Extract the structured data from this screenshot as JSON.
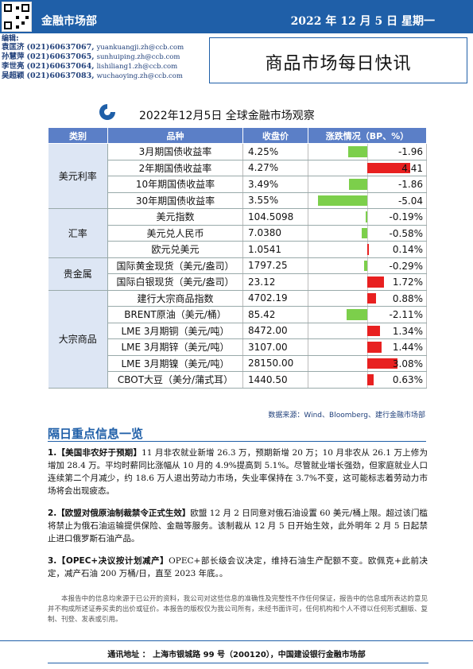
{
  "header": {
    "department": "金融市场部",
    "date": "2022 年 12 月 5 日  星期一"
  },
  "editors": {
    "label": "编辑:",
    "people": [
      {
        "name": "袁匡济",
        "phone": "(021)60637067,",
        "email": "yuankuangji.zh@ccb.com"
      },
      {
        "name": "孙慧萍",
        "phone": "(021)60637065,",
        "email": "sunhuiping.zh@ccb.com"
      },
      {
        "name": "李世亮",
        "phone": "(021)60637064,",
        "email": "lishiliang1.zh@ccb.com"
      },
      {
        "name": "吴超颖",
        "phone": "(021)60637083,",
        "email": "wuchaoying.zh@ccb.com"
      }
    ]
  },
  "title": "商品市场每日快讯",
  "table_title": "2022年12月5日 全球金融市场观察",
  "table_headers": [
    "类别",
    "品种",
    "收盘价",
    "涨跌情况（BP、%）"
  ],
  "colors": {
    "negative": "#7ccf4b",
    "positive": "#e82020",
    "header": "#5b7fc7"
  },
  "groups": [
    {
      "category": "美元利率",
      "rows": [
        {
          "item": "3月期国债收益率",
          "close": "4.25%",
          "change": "-1.96",
          "value": -1.96
        },
        {
          "item": "2年期国债收益率",
          "close": "4.27%",
          "change": "4.41",
          "value": 4.41
        },
        {
          "item": "10年期国债收益率",
          "close": "3.49%",
          "change": "-1.86",
          "value": -1.86
        },
        {
          "item": "30年期国债收益率",
          "close": "3.55%",
          "change": "-5.04",
          "value": -5.04
        }
      ]
    },
    {
      "category": "汇率",
      "rows": [
        {
          "item": "美元指数",
          "close": "104.5098",
          "change": "-0.19%",
          "value": -0.19
        },
        {
          "item": "美元兑人民币",
          "close": "7.0380",
          "change": "-0.58%",
          "value": -0.58
        },
        {
          "item": "欧元兑美元",
          "close": "1.0541",
          "change": "0.14%",
          "value": 0.14
        }
      ]
    },
    {
      "category": "贵金属",
      "rows": [
        {
          "item": "国际黄金现货（美元/盎司）",
          "close": "1797.25",
          "change": "-0.29%",
          "value": -0.29
        },
        {
          "item": "国际白银现货（美元/盎司）",
          "close": "23.12",
          "change": "1.72%",
          "value": 1.72
        }
      ]
    },
    {
      "category": "大宗商品",
      "rows": [
        {
          "item": "建行大宗商品指数",
          "close": "4702.19",
          "change": "0.88%",
          "value": 0.88
        },
        {
          "item": "BRENT原油（美元/桶）",
          "close": "85.42",
          "change": "-2.11%",
          "value": -2.11
        },
        {
          "item": "LME 3月期铜（美元/吨）",
          "close": "8472.00",
          "change": "1.34%",
          "value": 1.34
        },
        {
          "item": "LME 3月期锌（美元/吨）",
          "close": "3107.00",
          "change": "1.44%",
          "value": 1.44
        },
        {
          "item": "LME 3月期镍（美元/吨）",
          "close": "28150.00",
          "change": "3.08%",
          "value": 3.08
        },
        {
          "item": "CBOT大豆（美分/蒲式耳）",
          "close": "1440.50",
          "change": "0.63%",
          "value": 0.63
        }
      ]
    }
  ],
  "source": "数据来源：Wind、Bloomberg、建行金融市场部",
  "news_heading": "隔日重点信息一览",
  "news": [
    {
      "head": "1.【美国非农好于预期】",
      "body": "11 月非农就业新增 26.3 万，预期新增 20 万；10 月非农从 26.1 万上修为增加 28.4 万。平均时薪同比涨幅从 10 月的 4.9%提高到 5.1%。尽管就业增长强劲，但家庭就业人口连续第二个月减少，约 18.6 万人退出劳动力市场，失业率保持在 3.7%不变，这可能标志着劳动力市场将会出现疲态。"
    },
    {
      "head": "2.【欧盟对俄原油制裁禁令正式生效】",
      "body": "欧盟 12 月 2 日同意对俄石油设置 60 美元/桶上限。超过该门槛将禁止为俄石油运输提供保险、金融等服务。该制裁从 12 月 5 日开始生效，此外明年 2 月 5 日起禁止进口俄罗斯石油产品。"
    },
    {
      "head": "3.【OPEC+决议按计划减产】",
      "body": "OPEC+部长级会议决定，维持石油生产配额不变。欧佩克+此前决定，减产石油 200 万桶/日，直至 2023 年底。。"
    }
  ],
  "disclaimer": "本报告中的信息均来源于已公开的资料，我公司对这些信息的准确性及完整性不作任何保证，报告中的信息或所表达的意见并不构成所述证券买卖的出价或征价。本报告的版权仅为我公司所有，未经书面许可，任何机构和个人不得以任何形式翻版、复制、刊登、发表或引用。",
  "footer": "通讯地址 ： 上海市银城路 99 号（200120），中国建设银行金融市场部"
}
